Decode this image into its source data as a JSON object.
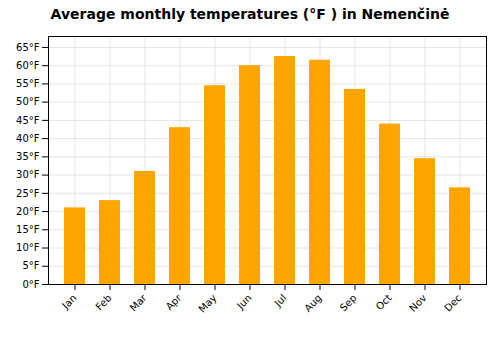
{
  "chart_data": {
    "type": "bar",
    "title": "Average monthly temperatures (°F ) in Nemenčinė",
    "categories": [
      "Jan",
      "Feb",
      "Mar",
      "Apr",
      "May",
      "Jun",
      "Jul",
      "Aug",
      "Sep",
      "Oct",
      "Nov",
      "Dec"
    ],
    "values": [
      21,
      23,
      31,
      43,
      54.5,
      60,
      62.5,
      61.5,
      53.5,
      44,
      34.5,
      26.5
    ],
    "color": "#FFA500",
    "ylim": [
      0,
      68
    ],
    "yticks": [
      {
        "value": 0,
        "label": "0°F"
      },
      {
        "value": 5,
        "label": "5°F"
      },
      {
        "value": 10,
        "label": "10°F"
      },
      {
        "value": 15,
        "label": "15°F"
      },
      {
        "value": 20,
        "label": "20°F"
      },
      {
        "value": 25,
        "label": "25°F"
      },
      {
        "value": 30,
        "label": "30°F"
      },
      {
        "value": 35,
        "label": "35°F"
      },
      {
        "value": 40,
        "label": "40°F"
      },
      {
        "value": 45,
        "label": "45°F"
      },
      {
        "value": 50,
        "label": "50°F"
      },
      {
        "value": 55,
        "label": "55°F"
      },
      {
        "value": 60,
        "label": "60°F"
      },
      {
        "value": 65,
        "label": "65°F"
      }
    ],
    "grid": true
  }
}
